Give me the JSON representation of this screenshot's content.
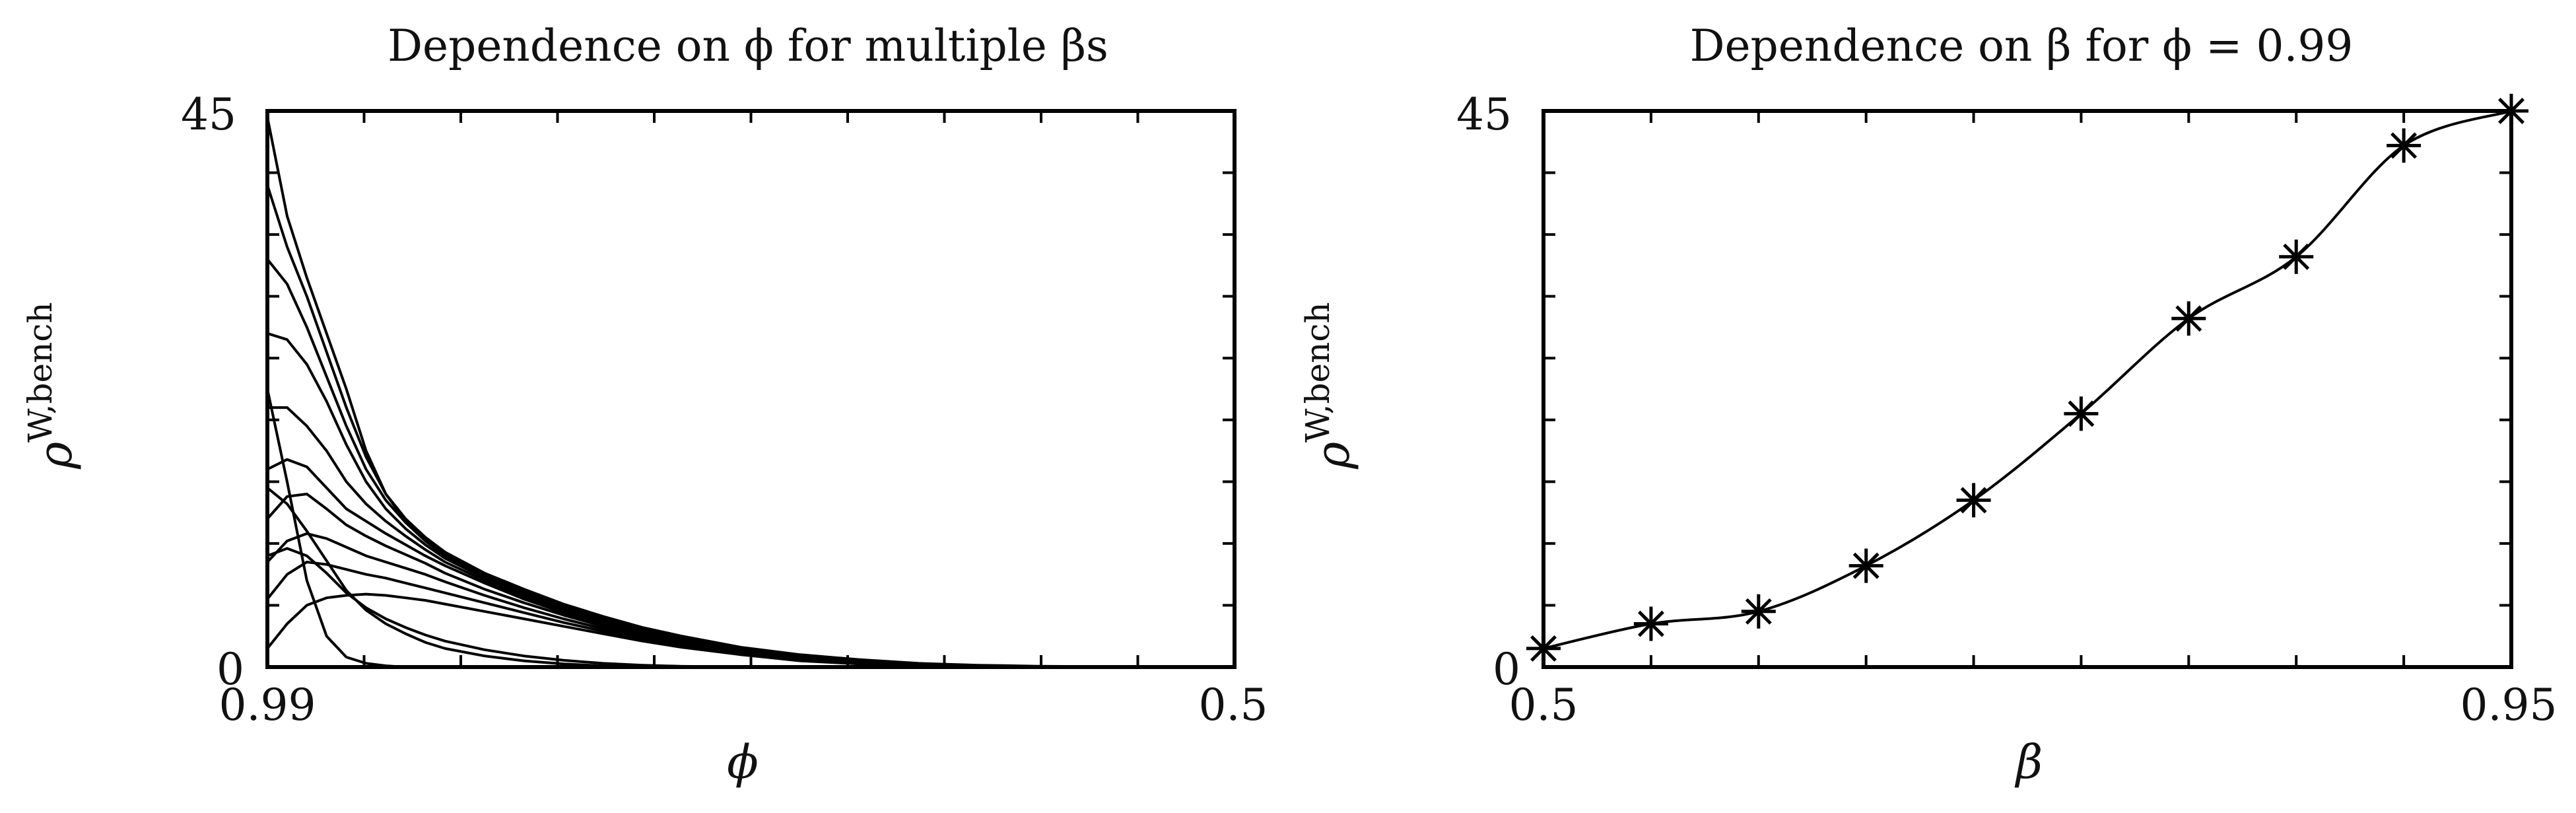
{
  "chart_data": [
    {
      "type": "line",
      "title": "Dependence on ϕ for multiple βs",
      "xlabel": "ϕ",
      "ylabel": "ρ",
      "ylabel_superscript": "W,bench",
      "x_tick_labels": [
        "0.99",
        "0.5"
      ],
      "y_tick_labels": [
        "0",
        "45"
      ],
      "xlim": [
        0.99,
        0.5
      ],
      "ylim": [
        0,
        45
      ],
      "x_reversed": true,
      "grid": false,
      "x": [
        0.99,
        0.98,
        0.97,
        0.96,
        0.95,
        0.94,
        0.93,
        0.92,
        0.91,
        0.9,
        0.88,
        0.86,
        0.84,
        0.82,
        0.8,
        0.78,
        0.75,
        0.72,
        0.69,
        0.66,
        0.63,
        0.6,
        0.55,
        0.5
      ],
      "series": [
        {
          "values": [
            44.5,
            36.5,
            31.5,
            27.0,
            22.5,
            17.5,
            14.0,
            11.8,
            10.3,
            9.2,
            7.6,
            6.3,
            5.1,
            4.1,
            3.2,
            2.5,
            1.6,
            1.0,
            0.6,
            0.3,
            0.15,
            0.07,
            0.02,
            0.0
          ]
        },
        {
          "values": [
            39.0,
            34.0,
            30.0,
            25.5,
            21.0,
            17.0,
            14.0,
            12.0,
            10.5,
            9.3,
            7.6,
            6.2,
            5.0,
            4.0,
            3.1,
            2.4,
            1.5,
            0.9,
            0.5,
            0.25,
            0.12,
            0.05,
            0.01,
            0.0
          ]
        },
        {
          "values": [
            33.0,
            31.0,
            27.5,
            23.5,
            19.5,
            16.0,
            13.5,
            11.7,
            10.2,
            9.0,
            7.4,
            6.0,
            4.8,
            3.8,
            3.0,
            2.3,
            1.4,
            0.85,
            0.45,
            0.22,
            0.1,
            0.04,
            0.01,
            0.0
          ]
        },
        {
          "values": [
            27.0,
            26.5,
            24.5,
            21.5,
            18.0,
            15.0,
            12.8,
            11.2,
            9.9,
            8.8,
            7.2,
            5.9,
            4.7,
            3.7,
            2.9,
            2.2,
            1.35,
            0.8,
            0.42,
            0.2,
            0.09,
            0.03,
            0.0,
            0.0
          ]
        },
        {
          "values": [
            21.0,
            21.0,
            19.5,
            17.5,
            15.0,
            13.2,
            11.8,
            10.6,
            9.5,
            8.5,
            7.0,
            5.7,
            4.6,
            3.6,
            2.8,
            2.1,
            1.3,
            0.75,
            0.4,
            0.18,
            0.08,
            0.03,
            0.0,
            0.0
          ]
        },
        {
          "values": [
            16.0,
            16.8,
            16.2,
            14.5,
            12.8,
            11.8,
            10.8,
            9.9,
            9.0,
            8.2,
            6.8,
            5.5,
            4.4,
            3.5,
            2.7,
            2.0,
            1.25,
            0.7,
            0.37,
            0.17,
            0.07,
            0.02,
            0.0,
            0.0
          ]
        },
        {
          "values": [
            12.0,
            13.8,
            14.0,
            12.8,
            11.5,
            10.6,
            9.8,
            9.1,
            8.4,
            7.6,
            6.3,
            5.2,
            4.2,
            3.3,
            2.6,
            1.95,
            1.2,
            0.65,
            0.34,
            0.15,
            0.06,
            0.02,
            0.0,
            0.0
          ]
        },
        {
          "values": [
            8.5,
            10.2,
            10.8,
            10.4,
            9.7,
            9.0,
            8.5,
            8.0,
            7.5,
            6.9,
            5.8,
            4.8,
            3.9,
            3.1,
            2.4,
            1.8,
            1.1,
            0.6,
            0.3,
            0.13,
            0.05,
            0.02,
            0.0,
            0.0
          ]
        },
        {
          "values": [
            5.5,
            7.5,
            8.5,
            8.3,
            7.9,
            7.5,
            7.2,
            6.8,
            6.4,
            6.0,
            5.2,
            4.4,
            3.6,
            2.9,
            2.2,
            1.7,
            1.0,
            0.55,
            0.28,
            0.12,
            0.05,
            0.01,
            0.0,
            0.0
          ]
        },
        {
          "values": [
            1.5,
            3.5,
            5.0,
            5.6,
            5.8,
            5.9,
            5.8,
            5.6,
            5.4,
            5.1,
            4.5,
            3.9,
            3.3,
            2.7,
            2.1,
            1.6,
            1.0,
            0.5,
            0.25,
            0.11,
            0.04,
            0.01,
            0.0,
            0.0
          ]
        },
        {
          "values": [
            22.5,
            15.0,
            7.0,
            2.5,
            0.8,
            0.3,
            0.1,
            0.0,
            0.0,
            0.0,
            0.0,
            0.0,
            0.0,
            0.0,
            0.0,
            0.0,
            0.0,
            0.0,
            0.0,
            0.0,
            0.0,
            0.0,
            0.0,
            0.0
          ]
        },
        {
          "values": [
            14.5,
            13.2,
            11.0,
            8.6,
            6.2,
            4.6,
            3.5,
            2.7,
            2.0,
            1.5,
            0.9,
            0.5,
            0.25,
            0.1,
            0.04,
            0.01,
            0.0,
            0.0,
            0.0,
            0.0,
            0.0,
            0.0,
            0.0,
            0.0
          ]
        },
        {
          "values": [
            9.0,
            9.6,
            9.0,
            7.6,
            6.0,
            4.8,
            3.9,
            3.2,
            2.6,
            2.1,
            1.4,
            0.9,
            0.55,
            0.3,
            0.15,
            0.06,
            0.02,
            0.0,
            0.0,
            0.0,
            0.0,
            0.0,
            0.0,
            0.0
          ]
        }
      ]
    },
    {
      "type": "line",
      "title": "Dependence on β for ϕ = 0.99",
      "xlabel": "β",
      "ylabel": "ρ",
      "ylabel_superscript": "W,bench",
      "x_tick_labels": [
        "0.5",
        "0.95"
      ],
      "y_tick_labels": [
        "0",
        "45"
      ],
      "xlim": [
        0.5,
        0.95
      ],
      "ylim": [
        0,
        45
      ],
      "grid": false,
      "marker": "asterisk",
      "series": [
        {
          "x": [
            0.5,
            0.55,
            0.6,
            0.65,
            0.7,
            0.75,
            0.8,
            0.85,
            0.9,
            0.95
          ],
          "values": [
            1.5,
            3.5,
            4.5,
            8.2,
            13.5,
            20.5,
            28.2,
            33.2,
            42.2,
            45.0
          ]
        }
      ]
    }
  ]
}
